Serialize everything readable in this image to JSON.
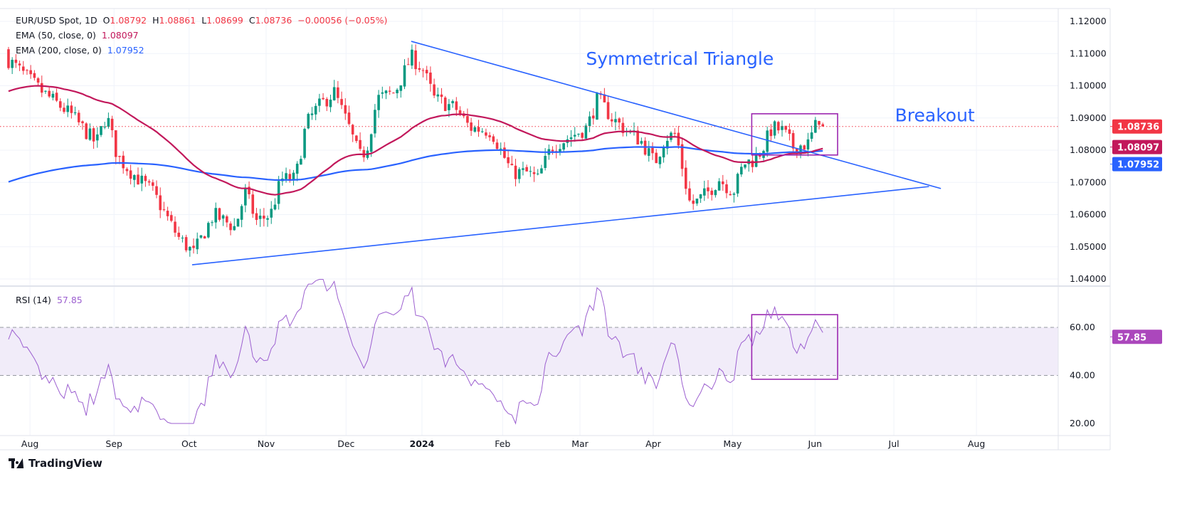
{
  "header": {
    "symbol": "EUR/USD Spot, 1D",
    "o_label": "O",
    "open": "1.08792",
    "h_label": "H",
    "high": "1.08861",
    "l_label": "L",
    "low": "1.08699",
    "c_label": "C",
    "close": "1.08736",
    "change": "−0.00056 (−0.05%)",
    "ema50_label": "EMA (50, close, 0)",
    "ema50_value": "1.08097",
    "ema200_label": "EMA (200, close, 0)",
    "ema200_value": "1.07952",
    "rsi_label": "RSI (14)",
    "rsi_value": "57.85"
  },
  "colors": {
    "up": "#089981",
    "down": "#f23645",
    "ema50": "#c2185b",
    "ema200": "#2962ff",
    "trend": "#2962ff",
    "box": "#9c27b0",
    "rsi": "#9c5fd0",
    "rsi_band": "#f1ecf9",
    "annot": "#2962ff"
  },
  "footer": {
    "brand": "TradingView"
  },
  "chart_data": {
    "type": "candlestick",
    "title": "EUR/USD Spot, 1D",
    "x_unit": "trading-day index",
    "xlim": [
      -2.3,
      283.6
    ],
    "ylim": [
      1.04,
      1.12
    ],
    "grid": true,
    "price_ticks": [
      "1.12000",
      "1.11000",
      "1.10000",
      "1.09000",
      "1.08000",
      "1.07000",
      "1.06000",
      "1.05000",
      "1.04000"
    ],
    "price_tick_values": [
      1.12,
      1.11,
      1.1,
      1.09,
      1.08,
      1.07,
      1.06,
      1.05,
      1.04
    ],
    "month_ticks": [
      {
        "label": "Aug",
        "idx": 5.8
      },
      {
        "label": "Sep",
        "idx": 28.5
      },
      {
        "label": "Oct",
        "idx": 48.8
      },
      {
        "label": "Nov",
        "idx": 69.6
      },
      {
        "label": "Dec",
        "idx": 91.2
      },
      {
        "label": "2024",
        "idx": 111.7,
        "bold": true
      },
      {
        "label": "Feb",
        "idx": 133.5
      },
      {
        "label": "Mar",
        "idx": 154.4
      },
      {
        "label": "Apr",
        "idx": 174.2
      },
      {
        "label": "May",
        "idx": 195.6
      },
      {
        "label": "Jun",
        "idx": 217.9
      },
      {
        "label": "Jul",
        "idx": 239.2
      },
      {
        "label": "Aug",
        "idx": 261.5
      }
    ],
    "close_path": [
      [
        0,
        1.108
      ],
      [
        9.2,
        1.098
      ],
      [
        16.9,
        1.091
      ],
      [
        23.7,
        1.082
      ],
      [
        26.5,
        1.091
      ],
      [
        29.4,
        1.078
      ],
      [
        33.3,
        1.073
      ],
      [
        39,
        1.067
      ],
      [
        45.8,
        1.053
      ],
      [
        50,
        1.048
      ],
      [
        55.4,
        1.06
      ],
      [
        61.2,
        1.056
      ],
      [
        64,
        1.067
      ],
      [
        67,
        1.058
      ],
      [
        70.8,
        1.06
      ],
      [
        73.7,
        1.071
      ],
      [
        77.5,
        1.071
      ],
      [
        80.4,
        1.088
      ],
      [
        83.3,
        1.093
      ],
      [
        88,
        1.098
      ],
      [
        92,
        1.087
      ],
      [
        94.8,
        1.078
      ],
      [
        96.7,
        1.08
      ],
      [
        99.6,
        1.096
      ],
      [
        104.4,
        1.098
      ],
      [
        108.8,
        1.109
      ],
      [
        112,
        1.105
      ],
      [
        115,
        1.096
      ],
      [
        120.8,
        1.093
      ],
      [
        124.6,
        1.087
      ],
      [
        130.4,
        1.086
      ],
      [
        136,
        1.073
      ],
      [
        140,
        1.073
      ],
      [
        143,
        1.071
      ],
      [
        146.7,
        1.081
      ],
      [
        151.5,
        1.084
      ],
      [
        156.3,
        1.087
      ],
      [
        159.2,
        1.096
      ],
      [
        163,
        1.09
      ],
      [
        167,
        1.086
      ],
      [
        170.8,
        1.083
      ],
      [
        174.6,
        1.076
      ],
      [
        177.5,
        1.084
      ],
      [
        180.4,
        1.085
      ],
      [
        182.3,
        1.073
      ],
      [
        184.2,
        1.063
      ],
      [
        186,
        1.064
      ],
      [
        189,
        1.067
      ],
      [
        192,
        1.071
      ],
      [
        195.8,
        1.067
      ],
      [
        198.7,
        1.076
      ],
      [
        201.5,
        1.077
      ],
      [
        203.5,
        1.08
      ],
      [
        206.3,
        1.087
      ],
      [
        209.2,
        1.086
      ],
      [
        212,
        1.081
      ],
      [
        216,
        1.082
      ],
      [
        219,
        1.09
      ],
      [
        220,
        1.08736
      ]
    ],
    "ema50_seed": 1.098,
    "ema200_seed": 1.0698,
    "trendlines": [
      {
        "name": "upper-trendline",
        "from": [
          108.8,
          1.1138
        ],
        "to": [
          251.9,
          1.0681
        ]
      },
      {
        "name": "lower-trendline",
        "from": [
          49.6,
          1.0444
        ],
        "to": [
          248.7,
          1.0687
        ]
      }
    ],
    "breakout_box": {
      "idx_range": [
        200.8,
        224
      ],
      "price_range": [
        1.0785,
        1.0913
      ],
      "rsi_range": [
        38.4,
        65.3
      ]
    },
    "annotations": [
      {
        "text": "Symmetrical Triangle",
        "idx": 156,
        "price": 1.1065
      },
      {
        "text": "Breakout",
        "idx": 239.5,
        "price": 1.0889
      }
    ],
    "last_price": {
      "label": "1.08736",
      "value": 1.08736
    },
    "ema50_badge": {
      "label": "1.08097",
      "value": 1.08097
    },
    "ema200_badge": {
      "label": "1.07952",
      "value": 1.07952
    },
    "rsi": {
      "period": 14,
      "ylim": [
        20,
        80
      ],
      "ticks": [
        "60.00",
        "40.00",
        "20.00"
      ],
      "tick_values": [
        60,
        40,
        20
      ],
      "band": [
        40,
        60
      ],
      "badge": {
        "label": "57.85",
        "value": 57.85
      }
    }
  }
}
